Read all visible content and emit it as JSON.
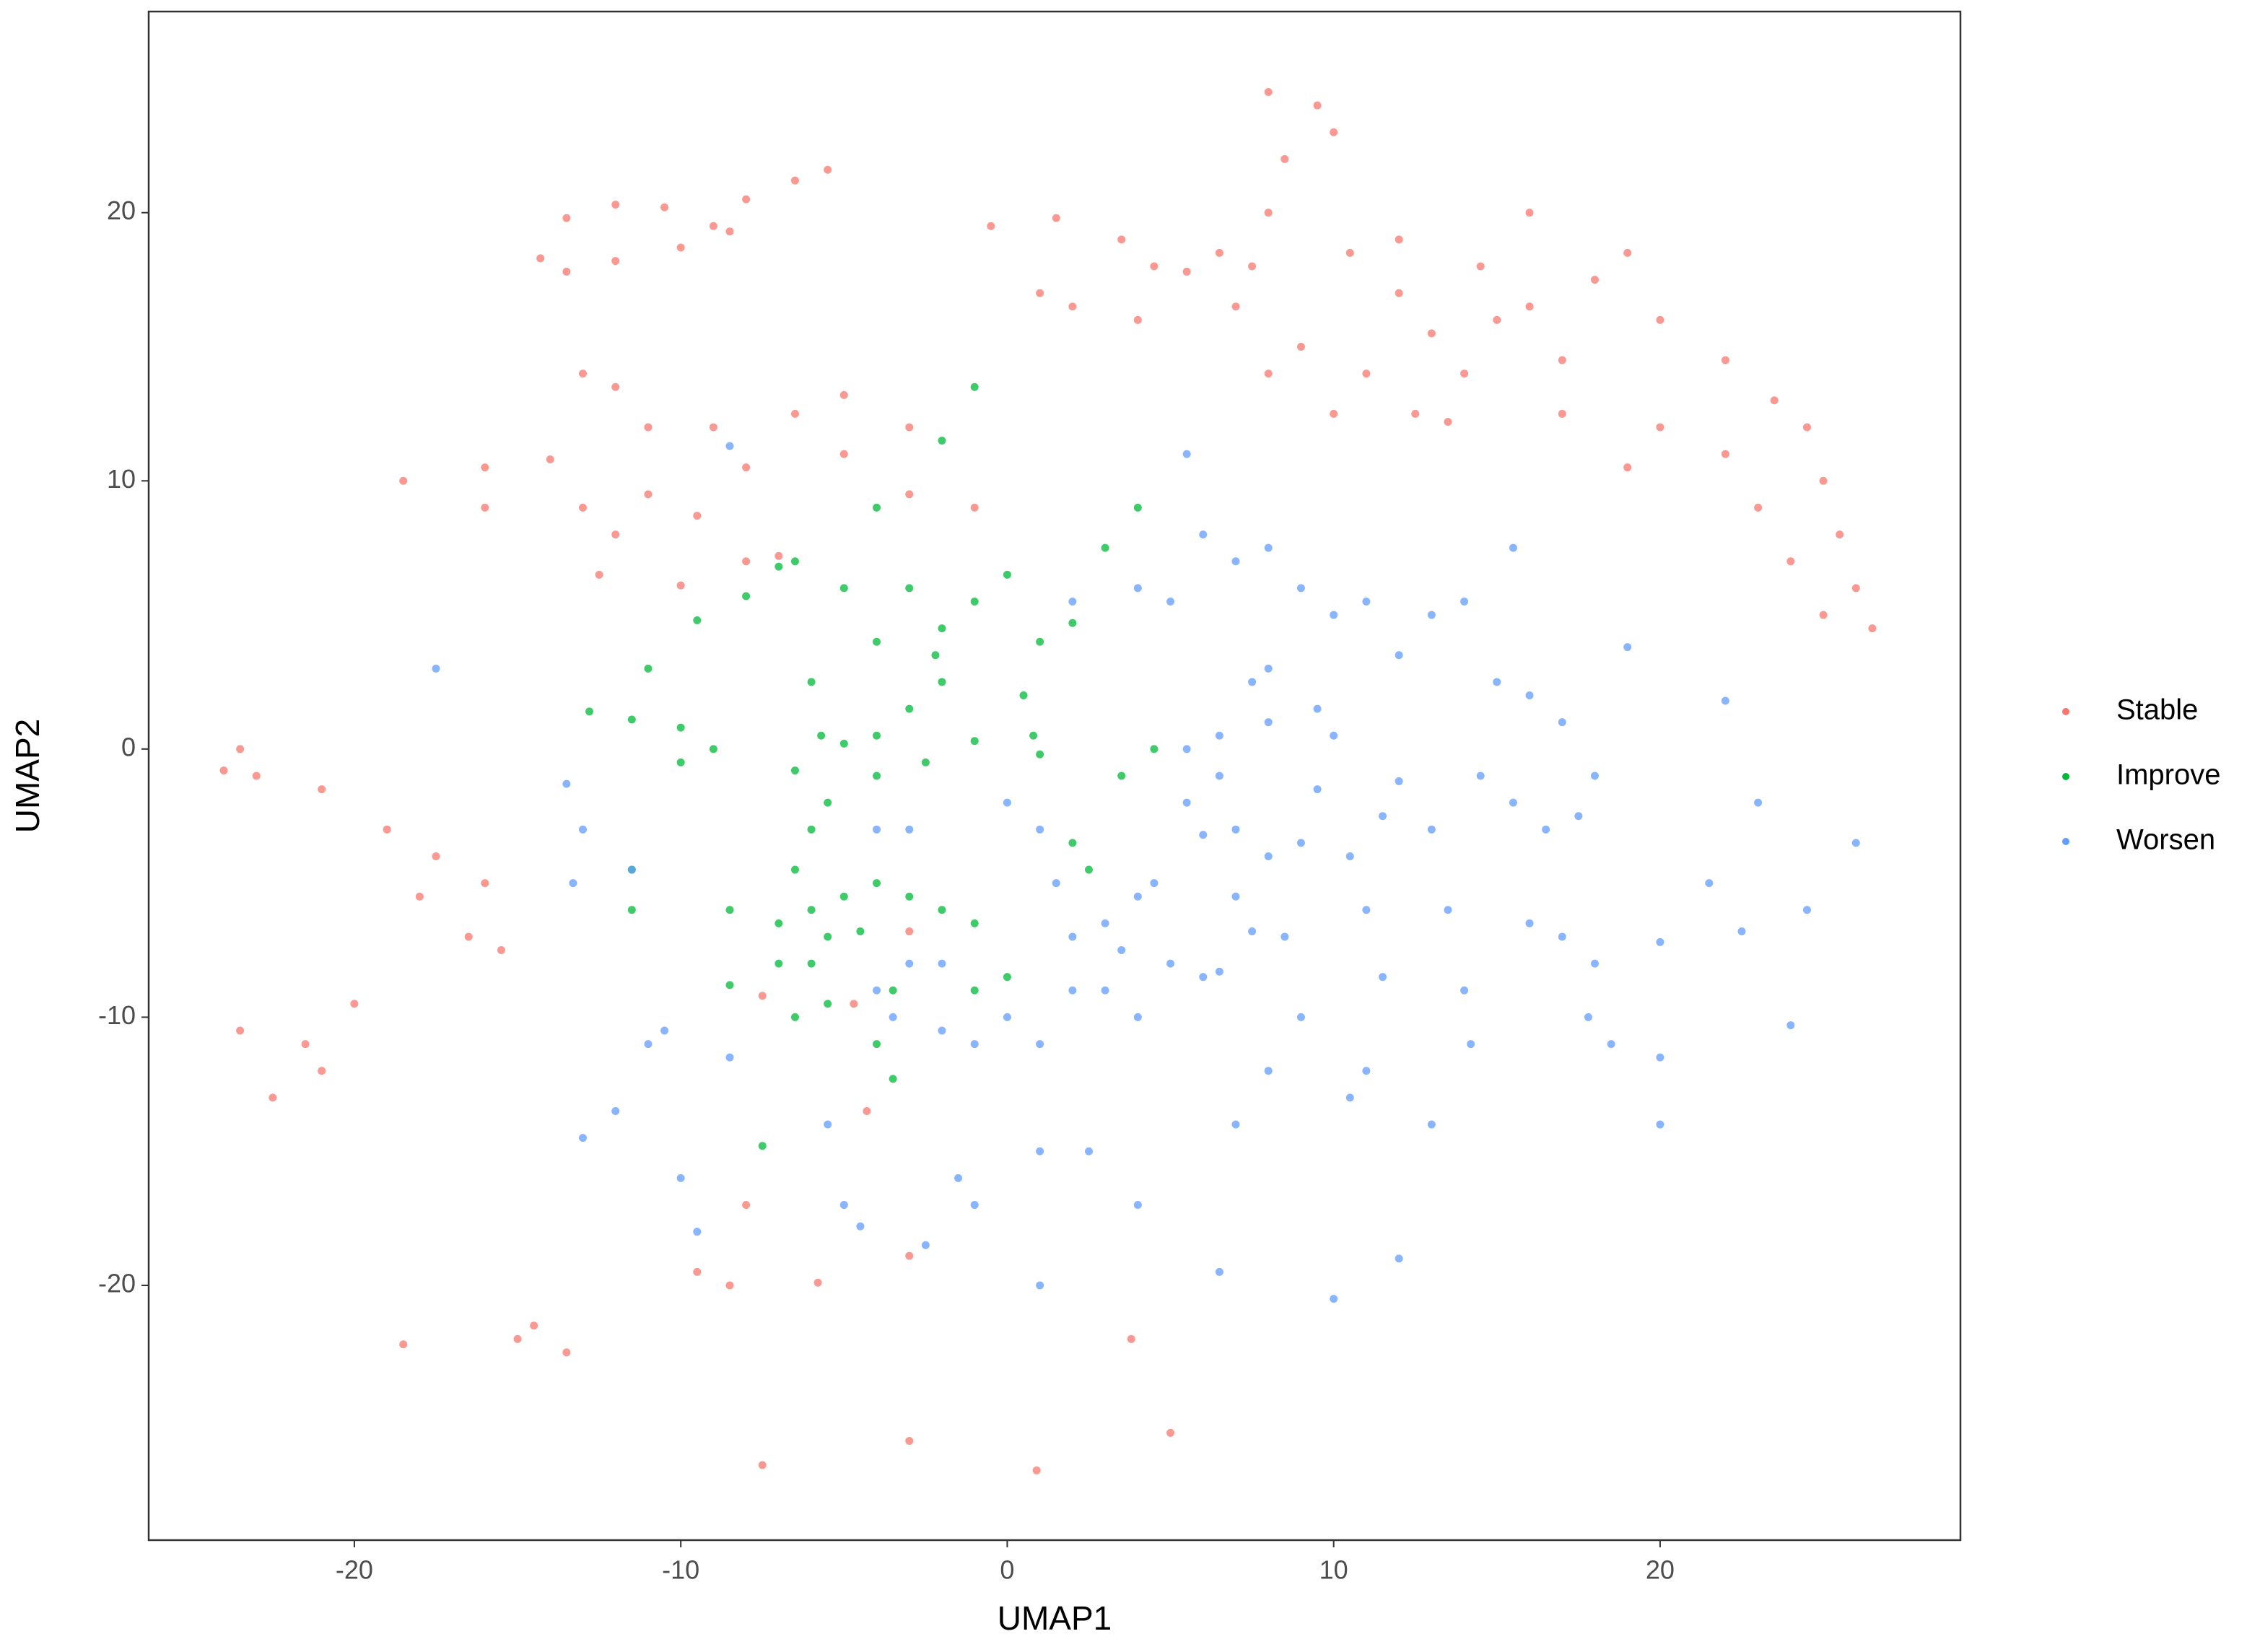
{
  "chart_data": {
    "type": "scatter",
    "x_label": "UMAP1",
    "y_label": "UMAP2",
    "xlim": [
      -26.3,
      29.2
    ],
    "ylim": [
      -29.5,
      27.5
    ],
    "xticks": [
      -20,
      -10,
      0,
      10,
      20
    ],
    "yticks": [
      -20,
      -10,
      0,
      10,
      20
    ],
    "grid": false,
    "legend": "right",
    "series": [
      {
        "name": "Stable",
        "color": "#F8766D",
        "x": [
          -14.3,
          -13.5,
          -12,
          -10.5,
          -9,
          -8,
          -6.5,
          -5.5,
          -8.5,
          -10,
          -12,
          -13.5,
          -18.5,
          -16,
          -14,
          -13,
          -12,
          -12.5,
          -10,
          -8,
          -9.5,
          -8,
          -11,
          -12,
          -13,
          -9,
          -6.5,
          -5,
          -3,
          -5,
          -3,
          -1,
          -7,
          -11,
          -16,
          -0.5,
          1.5,
          3.5,
          4.5,
          5.5,
          7,
          9,
          11,
          12.5,
          13.5,
          14,
          13,
          12,
          10.5,
          12,
          14.5,
          15,
          17,
          16,
          18,
          20,
          22,
          23.5,
          24.5,
          25,
          25.5,
          26,
          26.5,
          25,
          24,
          23,
          22,
          20,
          19,
          17,
          8,
          9.5,
          10,
          8.5,
          8,
          7.5,
          6.5,
          2,
          4,
          8,
          10,
          16,
          19,
          1,
          -23.5,
          -23,
          -24,
          -21,
          -19,
          -17.5,
          -16,
          -15.5,
          -16.5,
          -18,
          -23.5,
          -21.5,
          -20,
          -21,
          -22.5,
          -14.5,
          -13.5,
          -15,
          -9.5,
          -8.5,
          -18.5,
          -7.5,
          -3,
          0.9,
          5,
          3.8,
          -5.8,
          -3,
          -8,
          -4.3,
          -7.5,
          -4.7,
          -3
        ],
        "values": [
          18.3,
          19.8,
          20.3,
          20.2,
          19.5,
          20.5,
          21.2,
          21.6,
          19.3,
          18.7,
          18.2,
          17.8,
          10,
          10.5,
          10.8,
          9,
          8,
          6.5,
          6.1,
          7,
          8.7,
          10.5,
          12,
          13.5,
          14,
          12,
          12.5,
          13.2,
          12,
          11,
          9.5,
          9,
          7.2,
          9.5,
          9,
          19.5,
          19.8,
          19,
          18,
          17.8,
          16.5,
          15,
          14,
          12.5,
          12.2,
          14,
          15.5,
          17,
          18.5,
          19,
          18,
          16,
          14.5,
          16.5,
          17.5,
          16,
          14.5,
          13,
          12,
          10,
          8,
          6,
          4.5,
          5,
          7,
          9,
          11,
          12,
          10.5,
          12.5,
          24.5,
          24,
          23,
          22,
          20,
          18,
          18.5,
          16.5,
          16,
          14,
          12.5,
          20,
          18.5,
          17,
          0,
          -1,
          -0.8,
          -1.5,
          -3,
          -4,
          -5,
          -7.5,
          -7,
          -5.5,
          -10.5,
          -11,
          -9.5,
          -12,
          -13,
          -21.5,
          -22.5,
          -22,
          -19.5,
          -20,
          -22.2,
          -26.7,
          -25.8,
          -26.9,
          -25.5,
          -22,
          -19.9,
          -18.9,
          -17,
          -13.5,
          -9.2,
          -9.5,
          -6.8
        ]
      },
      {
        "name": "Improve",
        "color": "#00BA38",
        "x": [
          -12.8,
          -11.5,
          -10,
          -11,
          -9,
          -10,
          -9.5,
          -8,
          -7,
          -6.5,
          -5,
          -4,
          -3,
          -2,
          -1,
          0,
          -4,
          -2,
          -1,
          3,
          4,
          1,
          2,
          0.5,
          0.8,
          1,
          -6,
          -5.7,
          -6.5,
          -5,
          -4,
          -3,
          -2,
          -2.2,
          -1,
          -2.5,
          -4,
          -5.5,
          -6,
          -6.5,
          -6,
          -5,
          -4,
          -3,
          -2,
          -1,
          -5.5,
          -4.5,
          -6,
          -5.5,
          -6.5,
          -3.5,
          -4,
          -3.5,
          -1,
          0,
          -7,
          -8.5,
          -11.5,
          -11.5,
          -8.5,
          -7.5,
          -7,
          2,
          3.5,
          4.5,
          2.5
        ],
        "values": [
          1.4,
          1.1,
          0.8,
          3,
          0,
          -0.5,
          4.8,
          5.7,
          6.8,
          7,
          6,
          4,
          6,
          4.5,
          5.5,
          6.5,
          9,
          11.5,
          13.5,
          7.5,
          9,
          4,
          4.7,
          2,
          0.5,
          -0.2,
          2.5,
          0.5,
          -0.8,
          0.2,
          0.5,
          1.5,
          2.5,
          3.5,
          0.3,
          -0.5,
          -1,
          -2,
          -3,
          -4.5,
          -6,
          -5.5,
          -5,
          -5.5,
          -6,
          -6.5,
          -7,
          -6.8,
          -8,
          -9.5,
          -10,
          -9,
          -11,
          -12.3,
          -9,
          -8.5,
          -6.5,
          -6,
          -6,
          -4.5,
          -8.8,
          -14.8,
          -8,
          -3.5,
          -1,
          0,
          -4.5
        ]
      },
      {
        "name": "Worsen",
        "color": "#619CFF",
        "x": [
          -17.5,
          -13.5,
          -13,
          -13.3,
          -11.5,
          -10.5,
          -11,
          -13,
          -12,
          -10,
          -8.5,
          -9.5,
          -5.5,
          -5,
          -4.5,
          -2.5,
          -1.5,
          -1,
          1,
          1,
          2.5,
          4,
          6.5,
          10,
          12,
          -1,
          0,
          1,
          -2,
          -3.5,
          -4,
          -3,
          -2,
          0,
          1,
          1.5,
          2,
          3,
          3.5,
          4,
          4.5,
          3,
          4,
          5,
          6,
          6.5,
          7,
          6,
          5.5,
          6.5,
          5.5,
          6.5,
          7,
          8,
          7.5,
          8,
          9.5,
          10,
          8,
          9,
          10.5,
          11,
          11.5,
          12,
          13,
          13.5,
          14,
          14.2,
          13,
          11,
          10.5,
          9,
          8,
          7,
          7.5,
          8.5,
          11.5,
          9.5,
          15,
          16,
          17,
          18,
          17.5,
          16.5,
          15.5,
          14.5,
          16,
          17,
          18,
          17.8,
          18.5,
          20,
          19,
          20,
          20,
          21.5,
          22,
          22.5,
          23,
          24,
          24.5,
          26,
          2,
          2,
          6,
          7,
          5.5,
          8,
          9,
          10,
          11,
          12,
          13,
          14,
          15.5,
          4,
          5,
          -8.5,
          -4,
          -3
        ],
        "values": [
          3,
          -1.3,
          -3,
          -5,
          -4.5,
          -10.5,
          -11,
          -14.5,
          -13.5,
          -16,
          -11.5,
          -18,
          -14,
          -17,
          -17.8,
          -18.5,
          -16,
          -17,
          -15,
          -20,
          -15,
          -17,
          -19.5,
          -20.5,
          -19,
          -11,
          -10,
          -11,
          -8,
          -10,
          -9,
          -8,
          -10.5,
          -2,
          -3,
          -5,
          -7,
          -6.5,
          -7.5,
          -5.5,
          -5,
          -9,
          -10,
          -8,
          -8.5,
          -8.3,
          -3,
          -3.2,
          -2,
          -1,
          0,
          0.5,
          -5.5,
          1,
          2.5,
          3,
          1.5,
          0.5,
          -4,
          -3.5,
          -4,
          -6,
          -8.5,
          -1.2,
          -3,
          -6,
          -9,
          -11,
          -14,
          -12,
          -13,
          -10,
          -12,
          -14,
          -6.8,
          -7,
          -2.5,
          -1.5,
          2.5,
          2,
          1,
          -1,
          -2.5,
          -3,
          -2,
          -1,
          -6.5,
          -7,
          -8,
          -10,
          -11,
          -11.5,
          3.8,
          -7.2,
          -14,
          -5,
          1.8,
          -6.8,
          -2,
          -10.3,
          -6,
          -3.5,
          -9,
          5.5,
          8,
          7,
          11,
          7.5,
          6,
          5,
          5.5,
          3.5,
          5,
          5.5,
          7.5,
          6,
          5.5,
          11.3,
          -3,
          -3
        ]
      }
    ]
  }
}
